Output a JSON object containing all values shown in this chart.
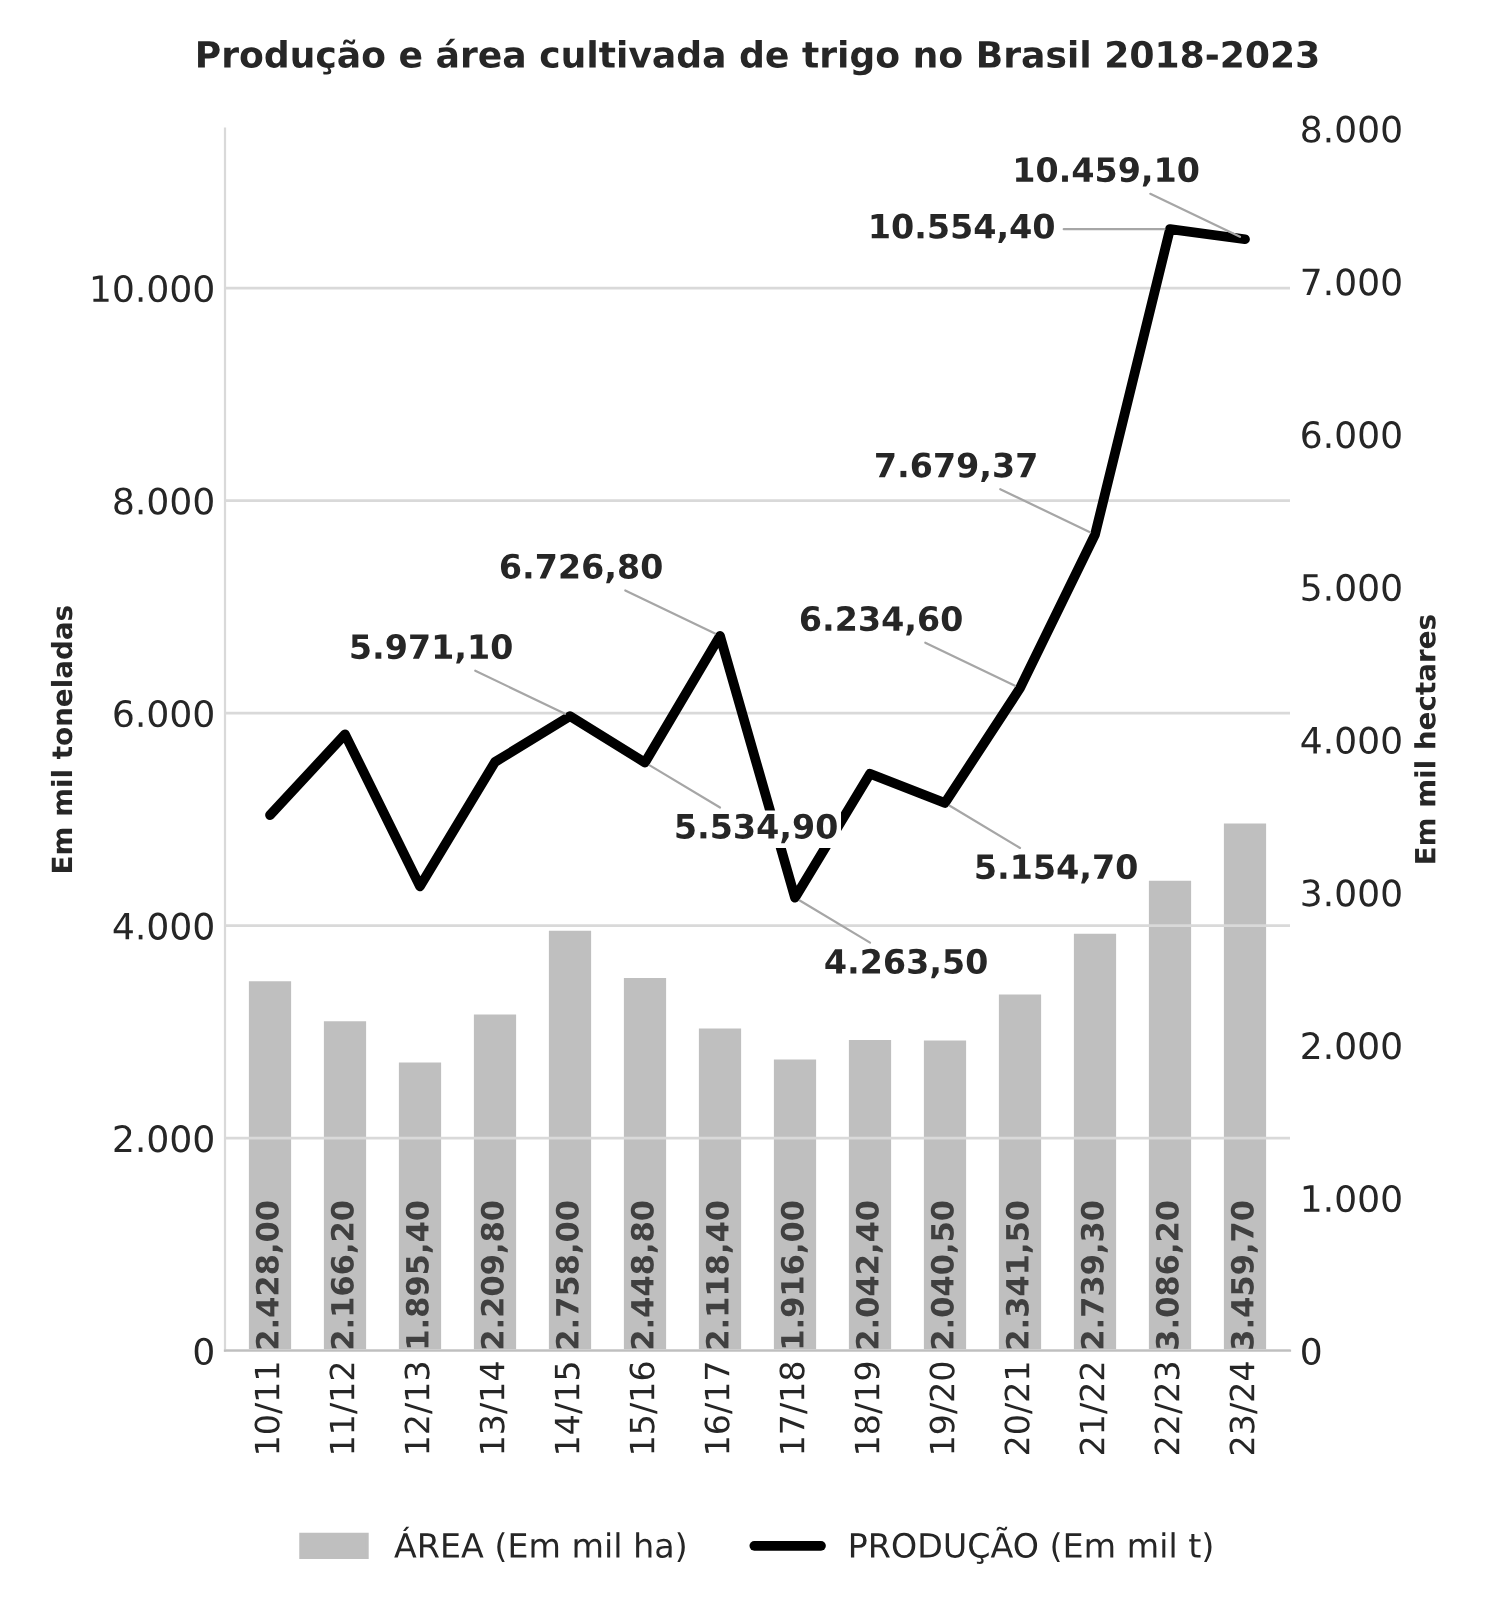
{
  "chart_data": {
    "type": "bar",
    "title": "Produção e área cultivada de trigo no Brasil 2018-2023",
    "ylabel": "Em mil toneladas",
    "y2label": "Em mil hectares",
    "categories": [
      "10/11",
      "11/12",
      "12/13",
      "13/14",
      "14/15",
      "15/16",
      "16/17",
      "17/18",
      "18/19",
      "19/20",
      "20/21",
      "21/22",
      "22/23",
      "23/24"
    ],
    "series": [
      {
        "name": "ÁREA (Em mil ha)",
        "axis": "y2",
        "color": "#bfbfbf",
        "values": [
          2428.0,
          2166.2,
          1895.4,
          2209.8,
          2758.0,
          2448.8,
          2118.4,
          1916.0,
          2042.4,
          2040.5,
          2341.5,
          2739.3,
          3086.2,
          3459.7
        ],
        "value_labels": [
          "2.428,00",
          "2.166,20",
          "1.895,40",
          "2.209,80",
          "2.758,00",
          "2.448,80",
          "2.118,40",
          "1.916,00",
          "2.042,40",
          "2.040,50",
          "2.341,50",
          "2.739,30",
          "3.086,20",
          "3.459,70"
        ]
      },
      {
        "name": "PRODUÇÃO (Em mil t)",
        "type": "line",
        "color": "#000000",
        "values": [
          5040,
          5800,
          4370,
          5540,
          5971.1,
          5534.9,
          6726.8,
          4263.5,
          5430,
          5154.7,
          6234.6,
          7679.37,
          10554.4,
          10459.1
        ],
        "value_labels": [
          null,
          null,
          null,
          null,
          "5.971,10",
          "5.534,90",
          "6.726,80",
          "4.263,50",
          null,
          "5.154,70",
          "6.234,60",
          "7.679,37",
          "10.554,40",
          "10.459,10"
        ]
      }
    ],
    "ylim": [
      0,
      11500
    ],
    "yticks": [
      0,
      {
        "value": 2000,
        "label": "2.000"
      },
      {
        "value": 4000,
        "label": "4.000"
      },
      {
        "value": 6000,
        "label": "6.000"
      },
      {
        "value": 8000,
        "label": "8.000"
      },
      {
        "value": 10000,
        "label": "10.000"
      }
    ],
    "y2lim": [
      0,
      8000
    ],
    "y2ticks": [
      0,
      {
        "value": 1000,
        "label": "1.000"
      },
      {
        "value": 2000,
        "label": "2.000"
      },
      {
        "value": 3000,
        "label": "3.000"
      },
      {
        "value": 4000,
        "label": "4.000"
      },
      {
        "value": 5000,
        "label": "5.000"
      },
      {
        "value": 6000,
        "label": "6.000"
      },
      {
        "value": 7000,
        "label": "7.000"
      },
      {
        "value": 8000,
        "label": "8.000"
      }
    ],
    "grid": "y",
    "legend": "bottom"
  }
}
